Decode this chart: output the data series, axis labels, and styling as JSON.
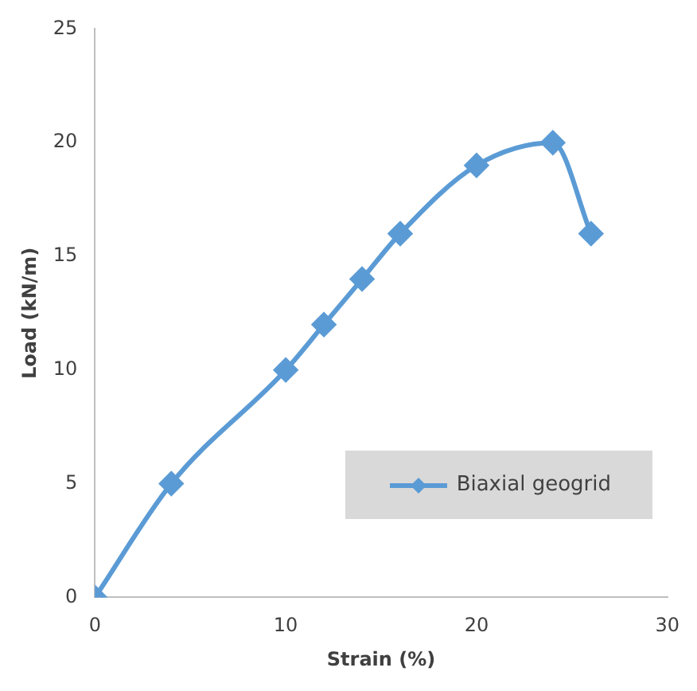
{
  "chart_data": {
    "type": "line",
    "xlabel": "Strain (%)",
    "ylabel": "Load (kN/m)",
    "xlim": [
      0,
      30
    ],
    "xticks": [
      0,
      10,
      20,
      30
    ],
    "ylim": [
      0,
      25
    ],
    "yticks": [
      0,
      5,
      10,
      15,
      20,
      25
    ],
    "grid": false,
    "legend": "bottom right",
    "marker": "diamond",
    "line_style": "solid",
    "series": [
      {
        "name": "Biaxial geogrid",
        "color": "#5b9bd5",
        "x": [
          0,
          4,
          10,
          12,
          14,
          16,
          20,
          24,
          26
        ],
        "values": [
          0,
          5,
          10,
          12,
          14,
          16,
          19,
          20,
          16
        ]
      }
    ]
  }
}
